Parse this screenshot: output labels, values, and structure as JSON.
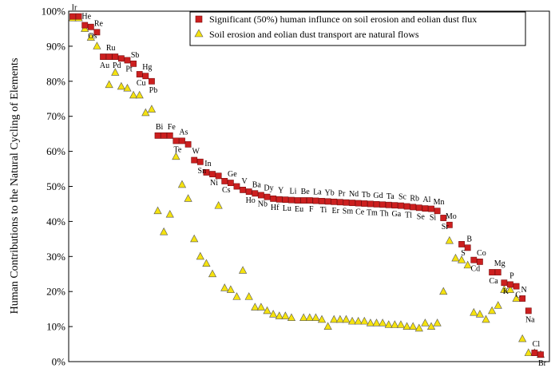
{
  "chart_data": {
    "type": "scatter",
    "title": "",
    "xlabel": "",
    "ylabel": "Human Contributions to the Natural Cycling of Elements",
    "ylim": [
      0,
      100
    ],
    "yticks": [
      "0%",
      "10%",
      "20%",
      "30%",
      "40%",
      "50%",
      "60%",
      "70%",
      "80%",
      "90%",
      "100%"
    ],
    "grid": false,
    "legend_position": "top-right",
    "colors": {
      "significant": "#cc1f1f",
      "natural": "#f5e20f"
    },
    "series": [
      {
        "name": "Significant (50%) human  influnce on soil erosion and eolian dust flux",
        "marker": "square",
        "points": [
          {
            "x": 1,
            "y": 98.5,
            "label": "Ir"
          },
          {
            "x": 2,
            "y": 98.5,
            "label": ""
          },
          {
            "x": 3,
            "y": 96.0,
            "label": "He"
          },
          {
            "x": 4,
            "y": 95.5,
            "label": "Os"
          },
          {
            "x": 5,
            "y": 94.0,
            "label": "Re"
          },
          {
            "x": 6,
            "y": 87.0,
            "label": "Au"
          },
          {
            "x": 7,
            "y": 87.0,
            "label": "Ru"
          },
          {
            "x": 8,
            "y": 87.0,
            "label": "Pd"
          },
          {
            "x": 9,
            "y": 86.5,
            "label": ""
          },
          {
            "x": 10,
            "y": 86.0,
            "label": "Pt"
          },
          {
            "x": 11,
            "y": 85.0,
            "label": "Sb"
          },
          {
            "x": 12,
            "y": 82.0,
            "label": "Cu"
          },
          {
            "x": 13,
            "y": 81.5,
            "label": "Hg"
          },
          {
            "x": 14,
            "y": 80.0,
            "label": "Pb"
          },
          {
            "x": 15,
            "y": 64.5,
            "label": "Bi"
          },
          {
            "x": 16,
            "y": 64.5,
            "label": ""
          },
          {
            "x": 17,
            "y": 64.5,
            "label": "Fe"
          },
          {
            "x": 18,
            "y": 63.0,
            "label": "Te"
          },
          {
            "x": 19,
            "y": 63.0,
            "label": "As"
          },
          {
            "x": 20,
            "y": 62.0,
            "label": ""
          },
          {
            "x": 21,
            "y": 57.5,
            "label": "W"
          },
          {
            "x": 22,
            "y": 57.0,
            "label": "Sn"
          },
          {
            "x": 23,
            "y": 54.0,
            "label": "In"
          },
          {
            "x": 24,
            "y": 53.5,
            "label": "Ni"
          },
          {
            "x": 25,
            "y": 53.0,
            "label": ""
          },
          {
            "x": 26,
            "y": 51.5,
            "label": "Cs"
          },
          {
            "x": 27,
            "y": 51.0,
            "label": "Ge"
          },
          {
            "x": 28,
            "y": 50.0,
            "label": ""
          },
          {
            "x": 29,
            "y": 49.0,
            "label": "V"
          },
          {
            "x": 30,
            "y": 48.5,
            "label": "Ho"
          },
          {
            "x": 31,
            "y": 48.0,
            "label": "Ba"
          },
          {
            "x": 32,
            "y": 47.5,
            "label": "Nb"
          },
          {
            "x": 33,
            "y": 47.0,
            "label": "Dy"
          },
          {
            "x": 34,
            "y": 46.5,
            "label": "Hf"
          },
          {
            "x": 35,
            "y": 46.3,
            "label": "Y"
          },
          {
            "x": 36,
            "y": 46.2,
            "label": "Lu"
          },
          {
            "x": 37,
            "y": 46.1,
            "label": "Li"
          },
          {
            "x": 38,
            "y": 46.0,
            "label": "Eu"
          },
          {
            "x": 39,
            "y": 46.0,
            "label": "Be"
          },
          {
            "x": 40,
            "y": 46.0,
            "label": "F"
          },
          {
            "x": 41,
            "y": 45.9,
            "label": "La"
          },
          {
            "x": 42,
            "y": 45.8,
            "label": "Ti"
          },
          {
            "x": 43,
            "y": 45.7,
            "label": "Yb"
          },
          {
            "x": 44,
            "y": 45.6,
            "label": "Er"
          },
          {
            "x": 45,
            "y": 45.5,
            "label": "Pr"
          },
          {
            "x": 46,
            "y": 45.4,
            "label": "Sm"
          },
          {
            "x": 47,
            "y": 45.3,
            "label": "Nd"
          },
          {
            "x": 48,
            "y": 45.2,
            "label": "Ce"
          },
          {
            "x": 49,
            "y": 45.1,
            "label": "Tb"
          },
          {
            "x": 50,
            "y": 45.0,
            "label": "Tm"
          },
          {
            "x": 51,
            "y": 44.9,
            "label": "Gd"
          },
          {
            "x": 52,
            "y": 44.8,
            "label": "Th"
          },
          {
            "x": 53,
            "y": 44.7,
            "label": "Ta"
          },
          {
            "x": 54,
            "y": 44.6,
            "label": "Ga"
          },
          {
            "x": 55,
            "y": 44.5,
            "label": "Sc"
          },
          {
            "x": 56,
            "y": 44.3,
            "label": "Tl"
          },
          {
            "x": 57,
            "y": 44.1,
            "label": "Rb"
          },
          {
            "x": 58,
            "y": 43.9,
            "label": "Se"
          },
          {
            "x": 59,
            "y": 43.7,
            "label": "Al"
          },
          {
            "x": 60,
            "y": 43.6,
            "label": "Si"
          },
          {
            "x": 61,
            "y": 43.0,
            "label": "Mn"
          },
          {
            "x": 62,
            "y": 41.0,
            "label": "Sr"
          },
          {
            "x": 63,
            "y": 39.0,
            "label": "Mo"
          },
          {
            "x": 65,
            "y": 33.5,
            "label": "S"
          },
          {
            "x": 66,
            "y": 32.5,
            "label": "B"
          },
          {
            "x": 67,
            "y": 29.0,
            "label": "Cd"
          },
          {
            "x": 68,
            "y": 28.5,
            "label": "Co"
          },
          {
            "x": 70,
            "y": 25.5,
            "label": "Ca"
          },
          {
            "x": 71,
            "y": 25.5,
            "label": "Mg"
          },
          {
            "x": 72,
            "y": 22.5,
            "label": "K"
          },
          {
            "x": 73,
            "y": 22.0,
            "label": "P"
          },
          {
            "x": 74,
            "y": 21.5,
            "label": "C"
          },
          {
            "x": 75,
            "y": 18.0,
            "label": "N"
          },
          {
            "x": 76,
            "y": 14.5,
            "label": "Na"
          },
          {
            "x": 77,
            "y": 2.5,
            "label": "Cl"
          },
          {
            "x": 78,
            "y": 2.0,
            "label": "Br"
          }
        ]
      },
      {
        "name": "Soil erosion and eolian dust transport are natural flows",
        "marker": "triangle",
        "points": [
          {
            "x": 1,
            "y": 98.0
          },
          {
            "x": 2,
            "y": 98.0
          },
          {
            "x": 3,
            "y": 95.0
          },
          {
            "x": 4,
            "y": 92.5
          },
          {
            "x": 5,
            "y": 90.0
          },
          {
            "x": 7,
            "y": 79.0
          },
          {
            "x": 8,
            "y": 82.5
          },
          {
            "x": 9,
            "y": 78.5
          },
          {
            "x": 10,
            "y": 78.0
          },
          {
            "x": 11,
            "y": 76.0
          },
          {
            "x": 12,
            "y": 76.0
          },
          {
            "x": 13,
            "y": 71.0
          },
          {
            "x": 14,
            "y": 72.0
          },
          {
            "x": 15,
            "y": 43.0
          },
          {
            "x": 16,
            "y": 37.0
          },
          {
            "x": 17,
            "y": 42.0
          },
          {
            "x": 18,
            "y": 58.5
          },
          {
            "x": 19,
            "y": 50.5
          },
          {
            "x": 20,
            "y": 46.5
          },
          {
            "x": 21,
            "y": 35.0
          },
          {
            "x": 22,
            "y": 30.0
          },
          {
            "x": 23,
            "y": 28.0
          },
          {
            "x": 24,
            "y": 25.0
          },
          {
            "x": 25,
            "y": 44.5
          },
          {
            "x": 26,
            "y": 21.0
          },
          {
            "x": 27,
            "y": 20.5
          },
          {
            "x": 28,
            "y": 18.5
          },
          {
            "x": 29,
            "y": 26.0
          },
          {
            "x": 30,
            "y": 18.5
          },
          {
            "x": 31,
            "y": 15.5
          },
          {
            "x": 32,
            "y": 15.5
          },
          {
            "x": 33,
            "y": 14.5
          },
          {
            "x": 34,
            "y": 13.5
          },
          {
            "x": 35,
            "y": 13.0
          },
          {
            "x": 36,
            "y": 13.0
          },
          {
            "x": 37,
            "y": 12.5
          },
          {
            "x": 39,
            "y": 12.5
          },
          {
            "x": 40,
            "y": 12.5
          },
          {
            "x": 41,
            "y": 12.5
          },
          {
            "x": 42,
            "y": 12.0
          },
          {
            "x": 43,
            "y": 10.0
          },
          {
            "x": 44,
            "y": 12.0
          },
          {
            "x": 45,
            "y": 12.0
          },
          {
            "x": 46,
            "y": 12.0
          },
          {
            "x": 47,
            "y": 11.5
          },
          {
            "x": 48,
            "y": 11.5
          },
          {
            "x": 49,
            "y": 11.5
          },
          {
            "x": 50,
            "y": 11.0
          },
          {
            "x": 51,
            "y": 11.0
          },
          {
            "x": 52,
            "y": 11.0
          },
          {
            "x": 53,
            "y": 10.5
          },
          {
            "x": 54,
            "y": 10.5
          },
          {
            "x": 55,
            "y": 10.5
          },
          {
            "x": 56,
            "y": 10.0
          },
          {
            "x": 57,
            "y": 10.0
          },
          {
            "x": 58,
            "y": 9.5
          },
          {
            "x": 59,
            "y": 11.0
          },
          {
            "x": 60,
            "y": 10.0
          },
          {
            "x": 61,
            "y": 11.0
          },
          {
            "x": 62,
            "y": 20.0
          },
          {
            "x": 63,
            "y": 34.5
          },
          {
            "x": 64,
            "y": 29.5
          },
          {
            "x": 65,
            "y": 29.0
          },
          {
            "x": 66,
            "y": 27.5
          },
          {
            "x": 67,
            "y": 14.0
          },
          {
            "x": 68,
            "y": 13.5
          },
          {
            "x": 69,
            "y": 12.0
          },
          {
            "x": 70,
            "y": 14.5
          },
          {
            "x": 71,
            "y": 16.0
          },
          {
            "x": 72,
            "y": 20.5
          },
          {
            "x": 73,
            "y": 20.5
          },
          {
            "x": 74,
            "y": 18.0
          },
          {
            "x": 75,
            "y": 6.5
          },
          {
            "x": 76,
            "y": 2.5
          },
          {
            "x": 77,
            "y": 2.5
          },
          {
            "x": 78,
            "y": 2.0
          }
        ]
      }
    ]
  }
}
